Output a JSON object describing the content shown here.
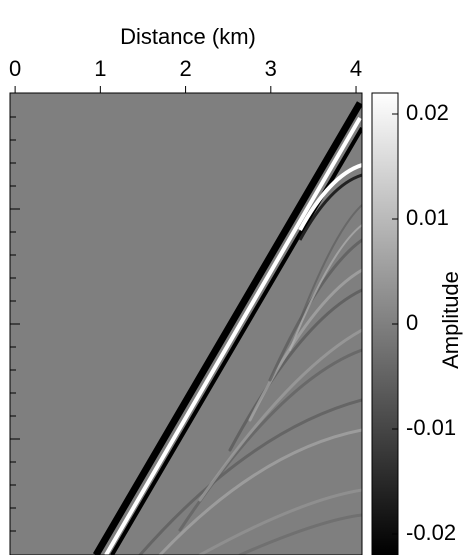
{
  "chart_data": {
    "type": "image",
    "xlabel": "Distance (km)",
    "xlim": [
      -0.06,
      4.07
    ],
    "xticks": [
      0,
      1,
      2,
      3,
      4
    ],
    "colorbar": {
      "label": "Amplitude",
      "lim": [
        -0.022,
        0.022
      ],
      "ticks": [
        0.02,
        0.01,
        0,
        -0.01,
        -0.02
      ]
    }
  }
}
